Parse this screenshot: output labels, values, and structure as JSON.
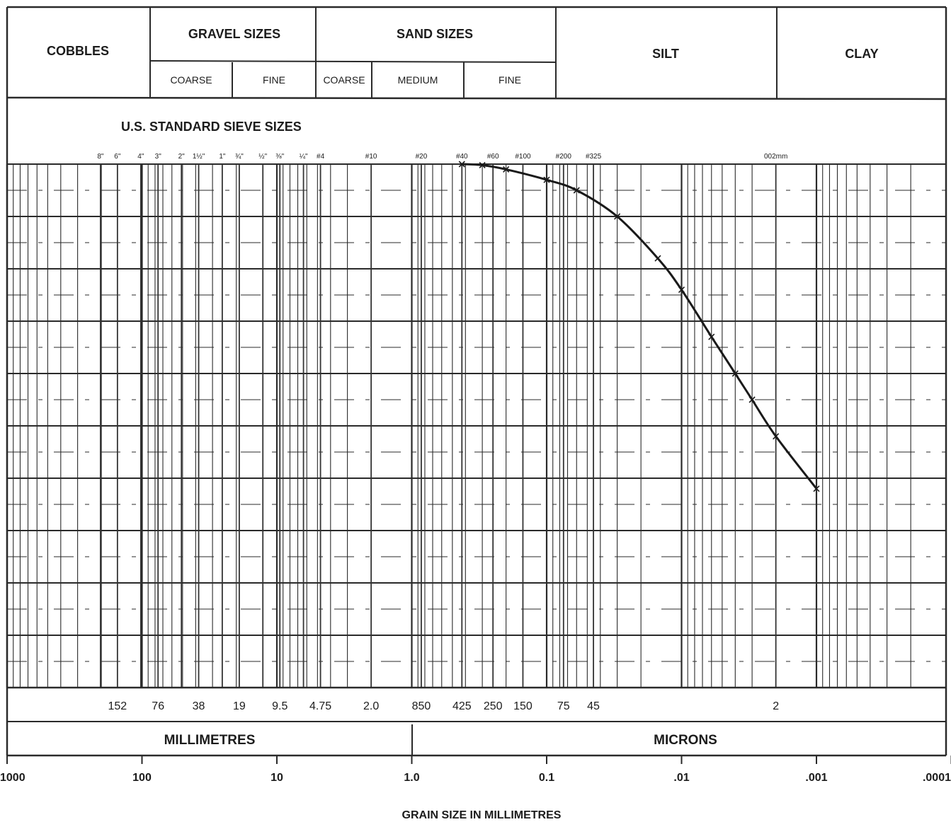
{
  "header": {
    "cobbles": "COBBLES",
    "gravel": "GRAVEL SIZES",
    "sand": "SAND SIZES",
    "silt": "SILT",
    "clay": "CLAY",
    "gravel_coarse": "COARSE",
    "gravel_fine": "FINE",
    "sand_coarse": "COARSE",
    "sand_medium": "MEDIUM",
    "sand_fine": "FINE"
  },
  "sieve_title": "U.S. STANDARD SIEVE SIZES",
  "units": {
    "millimetres": "MILLIMETRES",
    "microns": "MICRONS"
  },
  "chart_data": {
    "type": "line",
    "xlabel": "GRAIN SIZE IN MILLIMETRES",
    "x_scale": "log",
    "x_reversed": true,
    "xlim": [
      1000,
      0.0001
    ],
    "ylim": [
      0,
      100
    ],
    "x_ticks": [
      {
        "value": 1000,
        "label": "1000"
      },
      {
        "value": 100,
        "label": "100"
      },
      {
        "value": 10,
        "label": "10"
      },
      {
        "value": 1,
        "label": "1.0"
      },
      {
        "value": 0.1,
        "label": "0.1"
      },
      {
        "value": 0.01,
        "label": ".01"
      },
      {
        "value": 0.001,
        "label": ".001"
      },
      {
        "value": 0.0001,
        "label": ".0001"
      }
    ],
    "sieve_labels": [
      {
        "label": "8\"",
        "size": 203
      },
      {
        "label": "6\"",
        "size": 152
      },
      {
        "label": "4\"",
        "size": 102
      },
      {
        "label": "3\"",
        "size": 76
      },
      {
        "label": "2\"",
        "size": 51
      },
      {
        "label": "1½\"",
        "size": 38
      },
      {
        "label": "1\"",
        "size": 25.4
      },
      {
        "label": "¾\"",
        "size": 19
      },
      {
        "label": "½\"",
        "size": 12.7
      },
      {
        "label": "⅜\"",
        "size": 9.5
      },
      {
        "label": "¼\"",
        "size": 6.35
      },
      {
        "label": "#4",
        "size": 4.75
      },
      {
        "label": "#10",
        "size": 2.0
      },
      {
        "label": "#20",
        "size": 0.85
      },
      {
        "label": "#40",
        "size": 0.425
      },
      {
        "label": "#60",
        "size": 0.25
      },
      {
        "label": "#100",
        "size": 0.15
      },
      {
        "label": "#200",
        "size": 0.075
      },
      {
        "label": "#325",
        "size": 0.045
      },
      {
        "label": "002mm",
        "size": 0.002
      }
    ],
    "size_labels": [
      {
        "label": "152",
        "size": 152
      },
      {
        "label": "76",
        "size": 76
      },
      {
        "label": "38",
        "size": 38
      },
      {
        "label": "19",
        "size": 19
      },
      {
        "label": "9.5",
        "size": 9.5
      },
      {
        "label": "4.75",
        "size": 4.75
      },
      {
        "label": "2.0",
        "size": 2.0
      },
      {
        "label": "850",
        "size": 0.85
      },
      {
        "label": "425",
        "size": 0.425
      },
      {
        "label": "250",
        "size": 0.25
      },
      {
        "label": "150",
        "size": 0.15
      },
      {
        "label": "75",
        "size": 0.075
      },
      {
        "label": "45",
        "size": 0.045
      },
      {
        "label": "2",
        "size": 0.002
      }
    ],
    "series": [
      {
        "x": [
          0.425,
          0.3,
          0.2,
          0.1,
          0.06,
          0.03,
          0.015,
          0.01,
          0.006,
          0.004,
          0.003,
          0.002,
          0.001
        ],
        "y": [
          100,
          99.8,
          99,
          97,
          95,
          90,
          82,
          76,
          67,
          60,
          55,
          48,
          38
        ]
      }
    ]
  }
}
